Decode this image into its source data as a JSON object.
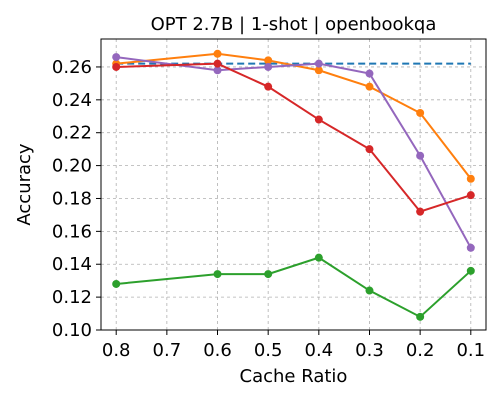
{
  "chart_data": {
    "type": "line",
    "title": "OPT 2.7B | 1-shot | openbookqa",
    "xlabel": "Cache Ratio",
    "ylabel": "Accuracy",
    "x": [
      0.8,
      0.6,
      0.5,
      0.4,
      0.3,
      0.2,
      0.1
    ],
    "x_tick_values": [
      0.8,
      0.7,
      0.6,
      0.5,
      0.4,
      0.3,
      0.2,
      0.1
    ],
    "x_tick_labels": [
      "0.8",
      "0.7",
      "0.6",
      "0.5",
      "0.4",
      "0.3",
      "0.2",
      "0.1"
    ],
    "xlim": [
      0.83,
      0.07
    ],
    "y_tick_values": [
      0.1,
      0.12,
      0.14,
      0.16,
      0.18,
      0.2,
      0.22,
      0.24,
      0.26
    ],
    "y_tick_labels": [
      "0.10",
      "0.12",
      "0.14",
      "0.16",
      "0.18",
      "0.20",
      "0.22",
      "0.24",
      "0.26"
    ],
    "ylim": [
      0.1,
      0.277
    ],
    "grid": true,
    "baseline": {
      "value": 0.262,
      "color": "#1f77b4",
      "style": "dashed"
    },
    "series": [
      {
        "color": "#ff7f0e",
        "values": [
          0.262,
          0.268,
          0.264,
          0.258,
          0.248,
          0.232,
          0.192
        ]
      },
      {
        "color": "#9467bd",
        "values": [
          0.266,
          0.258,
          0.26,
          0.262,
          0.256,
          0.206,
          0.15
        ]
      },
      {
        "color": "#d62728",
        "values": [
          0.26,
          0.262,
          0.248,
          0.228,
          0.21,
          0.172,
          0.182
        ]
      },
      {
        "color": "#2ca02c",
        "values": [
          0.128,
          0.134,
          0.134,
          0.144,
          0.124,
          0.108,
          0.136
        ]
      }
    ]
  }
}
